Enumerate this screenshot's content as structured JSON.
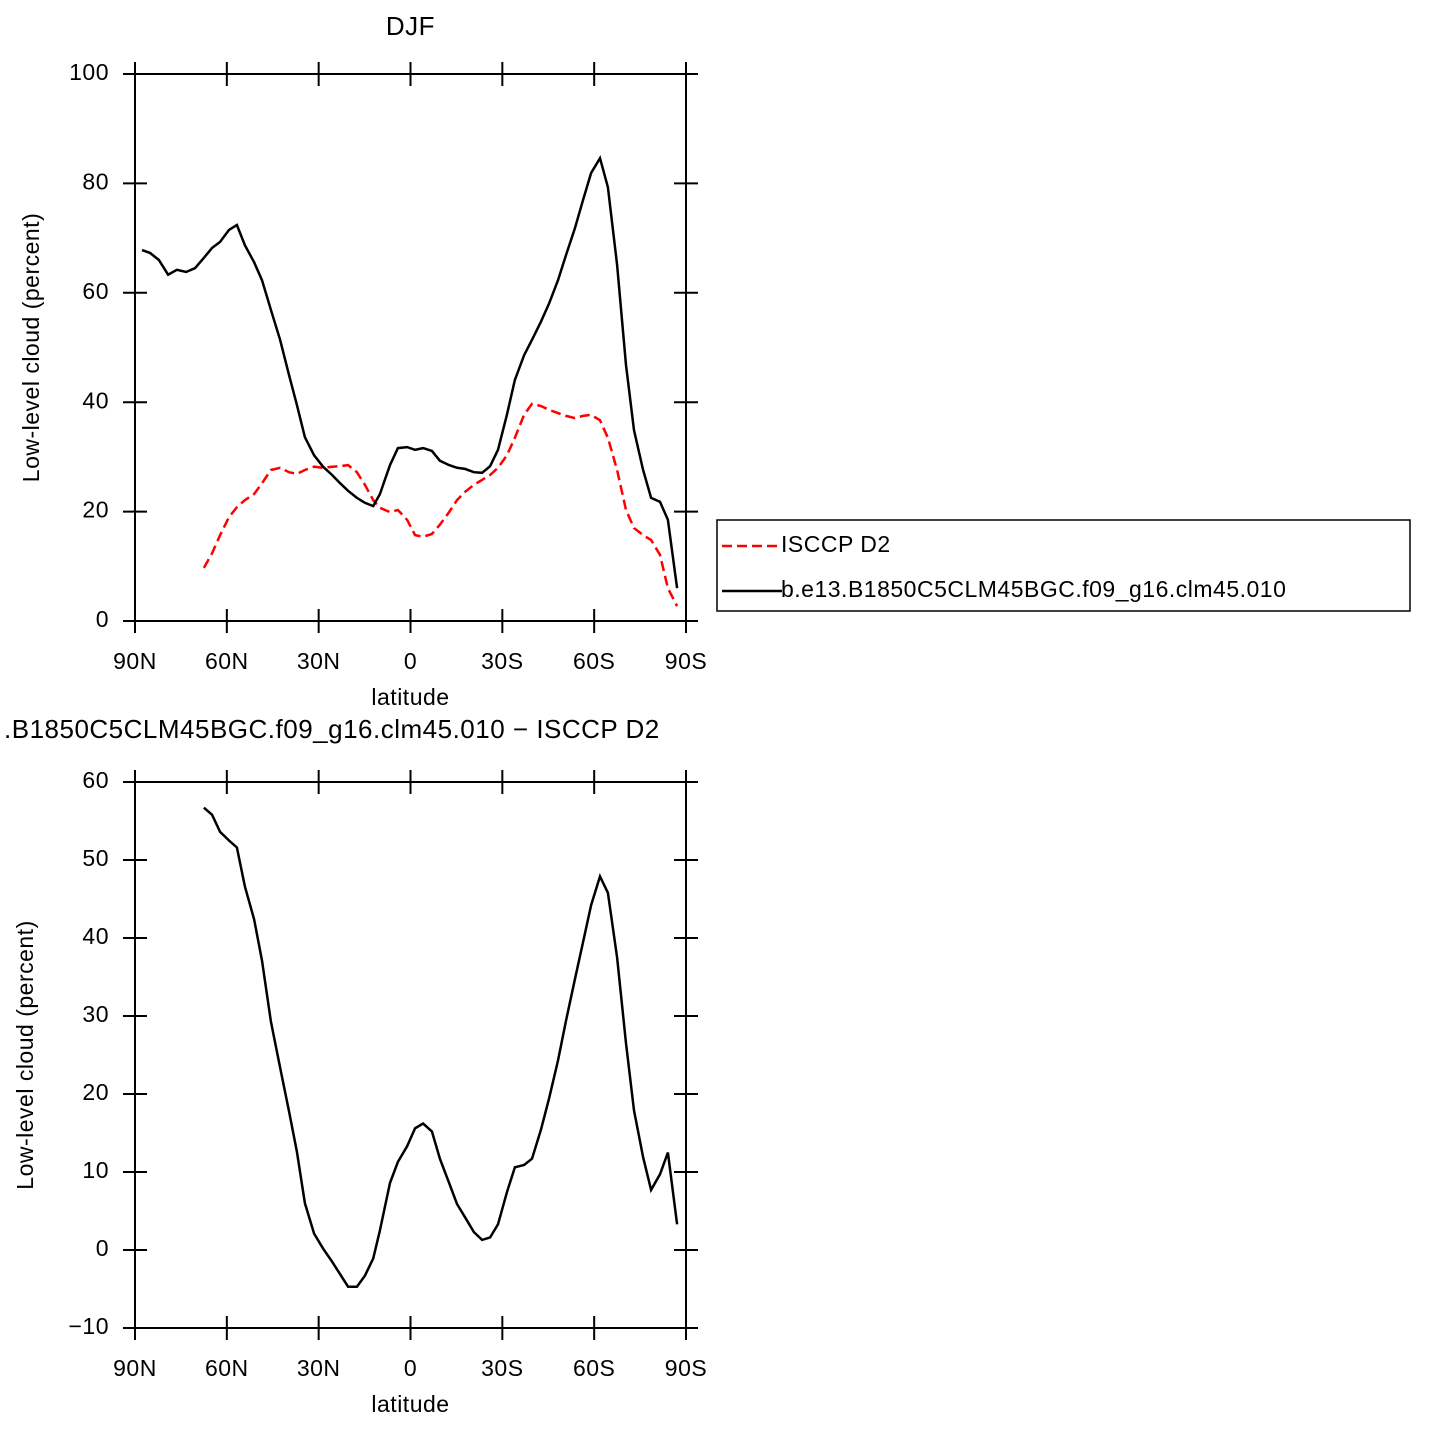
{
  "chart_data": [
    {
      "type": "line",
      "title": "DJF",
      "xlabel": "latitude",
      "ylabel": "Low-level cloud (percent)",
      "x": [
        87.7,
        85.1,
        82.2,
        79.2,
        76.3,
        73.3,
        70.4,
        67.5,
        64.8,
        62.2,
        59.3,
        56.7,
        54.1,
        51.1,
        48.5,
        45.6,
        42.6,
        39.7,
        37.1,
        34.5,
        31.5,
        28.6,
        25.6,
        23.0,
        20.4,
        17.5,
        14.9,
        12.2,
        10.0,
        6.7,
        4.1,
        1.1,
        -1.5,
        -4.1,
        -7.0,
        -9.6,
        -12.6,
        -15.2,
        -17.8,
        -20.7,
        -23.4,
        -26.0,
        -28.6,
        -31.5,
        -34.1,
        -37.1,
        -39.7,
        -42.6,
        -45.3,
        -48.2,
        -50.8,
        -53.7,
        -56.4,
        -59.0,
        -61.9,
        -64.5,
        -67.5,
        -70.4,
        -73.0,
        -76.0,
        -78.6,
        -81.5,
        -84.1,
        -87.1
      ],
      "series": [
        {
          "name": "ISCCP D2",
          "color": "#ff0000",
          "dash": "dashed",
          "values": [
            null,
            null,
            null,
            null,
            null,
            null,
            null,
            9.7,
            12.4,
            15.7,
            19.0,
            20.8,
            22.1,
            23.2,
            25.2,
            27.6,
            28.0,
            27.2,
            26.9,
            27.6,
            28.2,
            28.0,
            28.2,
            28.3,
            28.5,
            27.2,
            24.9,
            22.1,
            20.7,
            19.9,
            20.3,
            18.5,
            15.7,
            15.4,
            15.9,
            17.6,
            19.9,
            22.1,
            23.6,
            24.9,
            25.8,
            26.7,
            28.0,
            30.3,
            33.5,
            37.7,
            39.7,
            39.3,
            38.6,
            38.0,
            37.5,
            37.1,
            37.5,
            37.7,
            36.7,
            33.5,
            27.6,
            20.3,
            17.0,
            15.7,
            14.8,
            12.1,
            6.0,
            2.7
          ]
        },
        {
          "name": "b.e13.B1850C5CLM45BGC.f09_g16.clm45.010",
          "color": "#000000",
          "dash": "solid",
          "values": [
            67.8,
            67.3,
            66.0,
            63.3,
            64.2,
            63.8,
            64.5,
            66.4,
            68.2,
            69.3,
            71.5,
            72.4,
            68.7,
            65.6,
            62.3,
            56.9,
            51.4,
            45.0,
            39.5,
            33.6,
            30.3,
            28.2,
            26.7,
            25.2,
            23.8,
            22.5,
            21.6,
            21.0,
            23.2,
            28.5,
            31.6,
            31.8,
            31.3,
            31.6,
            31.1,
            29.3,
            28.5,
            28.0,
            27.8,
            27.2,
            27.1,
            28.3,
            31.3,
            37.7,
            44.1,
            48.6,
            51.4,
            54.7,
            58.1,
            62.3,
            66.9,
            71.8,
            77.0,
            81.9,
            84.6,
            79.3,
            65.1,
            46.8,
            34.9,
            27.6,
            22.5,
            21.8,
            18.5,
            6.0
          ]
        }
      ],
      "xlim": [
        90,
        -90
      ],
      "xticks": [
        {
          "value": 90,
          "label": "90N"
        },
        {
          "value": 60,
          "label": "60N"
        },
        {
          "value": 30,
          "label": "30N"
        },
        0,
        {
          "value": -30,
          "label": "30S"
        },
        {
          "value": -60,
          "label": "60S"
        },
        {
          "value": -90,
          "label": "90S"
        }
      ],
      "ylim": [
        0,
        100
      ],
      "yticks": [
        0,
        20,
        40,
        60,
        80,
        100
      ],
      "legend": "right"
    },
    {
      "type": "line",
      "title": ".B1850C5CLM45BGC.f09_g16.clm45.010 − ISCCP D2",
      "xlabel": "latitude",
      "ylabel": "Low-level cloud (percent)",
      "x": [
        67.5,
        64.8,
        62.2,
        59.3,
        56.7,
        54.1,
        51.1,
        48.5,
        45.6,
        42.6,
        39.7,
        37.1,
        34.5,
        31.5,
        28.6,
        25.6,
        23.0,
        20.4,
        17.5,
        14.9,
        12.2,
        10.0,
        6.7,
        4.1,
        1.1,
        -1.5,
        -4.1,
        -7.0,
        -9.6,
        -12.6,
        -15.2,
        -17.8,
        -20.7,
        -23.4,
        -26.0,
        -28.6,
        -31.5,
        -34.1,
        -37.1,
        -39.7,
        -42.6,
        -45.3,
        -48.2,
        -50.8,
        -53.7,
        -56.4,
        -59.0,
        -61.9,
        -64.5,
        -67.5,
        -70.4,
        -73.0,
        -76.0,
        -78.6,
        -81.5,
        -84.1,
        -87.1
      ],
      "series": [
        {
          "color": "#000000",
          "dash": "solid",
          "values": [
            56.7,
            55.8,
            53.6,
            52.5,
            51.6,
            46.6,
            42.4,
            37.1,
            29.3,
            23.4,
            17.8,
            12.6,
            6.0,
            2.1,
            0.2,
            -1.5,
            -3.1,
            -4.7,
            -4.7,
            -3.3,
            -1.1,
            2.5,
            8.6,
            11.3,
            13.3,
            15.6,
            16.2,
            15.2,
            11.7,
            8.6,
            5.9,
            4.2,
            2.3,
            1.3,
            1.6,
            3.3,
            7.4,
            10.6,
            10.9,
            11.7,
            15.4,
            19.5,
            24.3,
            29.4,
            34.7,
            39.5,
            44.2,
            47.9,
            45.8,
            37.5,
            26.5,
            17.9,
            11.9,
            7.7,
            9.7,
            12.5,
            3.3
          ]
        }
      ],
      "xlim": [
        90,
        -90
      ],
      "xticks": [
        {
          "value": 90,
          "label": "90N"
        },
        {
          "value": 60,
          "label": "60N"
        },
        {
          "value": 30,
          "label": "30N"
        },
        0,
        {
          "value": -30,
          "label": "30S"
        },
        {
          "value": -60,
          "label": "60S"
        },
        {
          "value": -90,
          "label": "90S"
        }
      ],
      "ylim": [
        -10,
        60
      ],
      "yticks": [
        {
          "value": -10,
          "label": "−10"
        },
        0,
        10,
        20,
        30,
        40,
        50,
        60
      ]
    }
  ]
}
